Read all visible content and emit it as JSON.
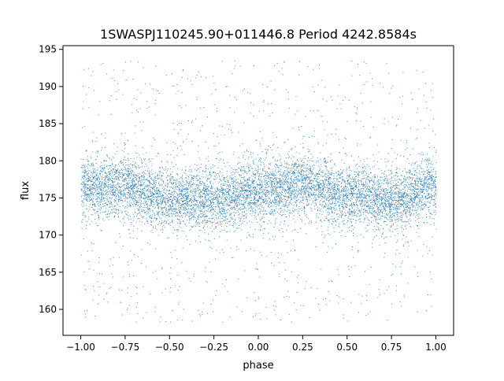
{
  "chart_data": {
    "type": "scatter",
    "title": "1SWASPJ110245.90+011446.8 Period 4242.8584s",
    "xlabel": "phase",
    "ylabel": "flux",
    "xlim": [
      -1.1,
      1.1
    ],
    "ylim": [
      156.5,
      195.5
    ],
    "xticks": [
      -1.0,
      -0.75,
      -0.5,
      -0.25,
      0.0,
      0.25,
      0.5,
      0.75,
      1.0
    ],
    "xtick_labels": [
      "−1.00",
      "−0.75",
      "−0.50",
      "−0.25",
      "0.00",
      "0.25",
      "0.50",
      "0.75",
      "1.00"
    ],
    "yticks": [
      160,
      165,
      170,
      175,
      180,
      185,
      190,
      195
    ],
    "ytick_labels": [
      "160",
      "165",
      "170",
      "175",
      "180",
      "185",
      "190",
      "195"
    ],
    "grid": false,
    "legend": "none",
    "point_color": "#1f77b4",
    "phase_range": [
      -1.0,
      1.0
    ],
    "flux_range": [
      158.3,
      193.5
    ],
    "series": [
      {
        "trend": {
          "x": [
            -1.0,
            -0.75,
            -0.5,
            -0.25,
            0.0,
            0.25,
            0.5,
            0.75,
            1.0
          ],
          "y": [
            176.5,
            176.5,
            175.0,
            174.8,
            176.0,
            176.8,
            175.3,
            174.8,
            176.5
          ]
        },
        "core_spread": 2.3,
        "outlier_fraction": 0.12
      }
    ]
  }
}
